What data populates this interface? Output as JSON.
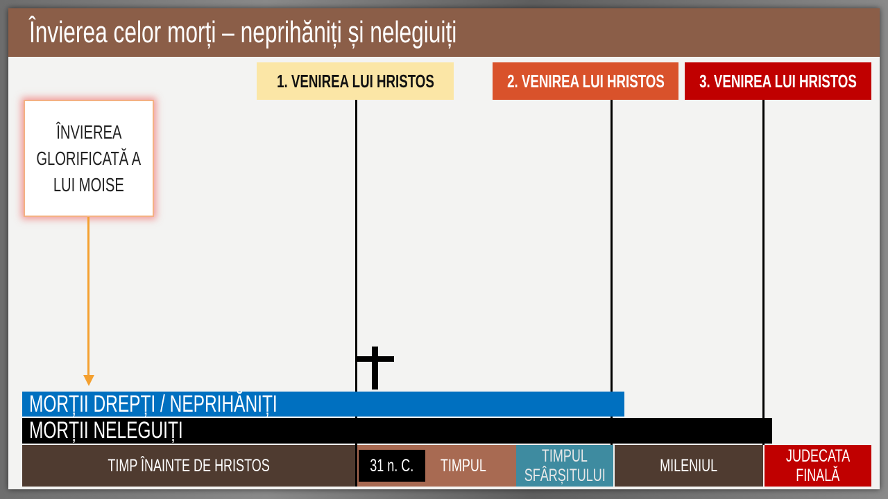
{
  "title": "Învierea celor morți – neprihăniți și nelegiuiți",
  "headers": [
    {
      "label": "1. VENIREA LUI HRISTOS",
      "color": "#FBE6A6"
    },
    {
      "label": "2. VENIREA LUI HRISTOS",
      "color": "#D9522B"
    },
    {
      "label": "3. VENIREA LUI HRISTOS",
      "color": "#C00000"
    }
  ],
  "moses_box": {
    "line1": "ÎNVIEREA",
    "line2": "GLORIFICATĂ A",
    "line3": "LUI MOISE"
  },
  "bars": {
    "righteous": "MORȚII DREPȚI / NEPRIHĂNIȚI",
    "wicked": "MORȚII NELEGUIȚI",
    "righteous_color": "#0070C0"
  },
  "timeline": {
    "before_christ": "TIMP ÎNAINTE DE HRISTOS",
    "year": "31 n. C.",
    "time": "TIMPUL",
    "end_time_1": "TIMPUL",
    "end_time_2": "SFÂRȘITULUI",
    "millennium": "MILENIUL",
    "judgment_1": "JUDECATA",
    "judgment_2": "FINALĂ"
  },
  "icons": [
    "cross-icon",
    "arrow-down-icon"
  ]
}
